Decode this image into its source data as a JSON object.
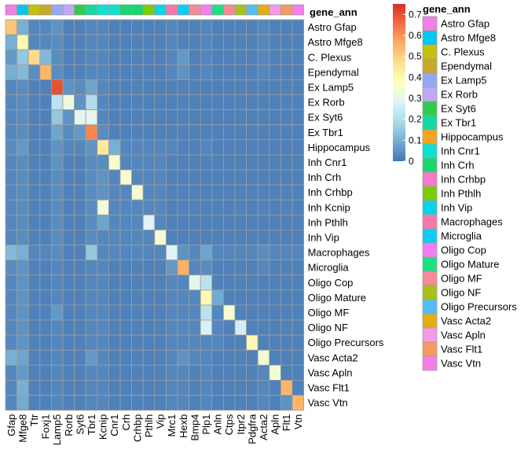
{
  "chart_data": {
    "type": "heatmap",
    "title": "",
    "annotation_title": "gene_ann",
    "legend_title": "gene_ann",
    "columns": [
      "Gfap",
      "Mfge8",
      "Ttr",
      "Foxj1",
      "Lamp5",
      "Rorb",
      "Syt6",
      "Tbr1",
      "Kcnip",
      "Cnr1",
      "Crh",
      "Crhbp",
      "Pthlh",
      "Vip",
      "Mrc1",
      "Hexb",
      "Bmp4",
      "Plp1",
      "Anln",
      "Ctps",
      "Itpr2",
      "Pdgfra",
      "Acta2",
      "Apln",
      "Flt1",
      "Vtn"
    ],
    "column_annotation": [
      "Astro Gfap",
      "Astro Mfge8",
      "C. Plexus",
      "Ependymal",
      "Ex Lamp5",
      "Ex Rorb",
      "Ex Syt6",
      "Ex Tbr1",
      "Inh Cnr1",
      "Inh Cnr1",
      "Inh Crh",
      "Inh Crh",
      "Inh Pthlh",
      "Inh Vip",
      "Macrophages",
      "Microglia",
      "Oligo MF",
      "Oligo Cop",
      "Oligo Mature",
      "Oligo MF",
      "Oligo NF",
      "Oligo Precursors",
      "Vasc Acta2",
      "Vasc Apln",
      "Vasc Flt1",
      "Vasc Vtn"
    ],
    "rows": [
      "Astro Gfap",
      "Astro Mfge8",
      "C. Plexus",
      "Ependymal",
      "Ex Lamp5",
      "Ex Rorb",
      "Ex Syt6",
      "Ex Tbr1",
      "Hippocampus",
      "Inh Cnr1",
      "Inh Crh",
      "Inh Crhbp",
      "Inh Kcnip",
      "Inh Pthlh",
      "Inh Vip",
      "Macrophages",
      "Microglia",
      "Oligo Cop",
      "Oligo Mature",
      "Oligo MF",
      "Oligo NF",
      "Oligo Precursors",
      "Vasc Acta2",
      "Vasc Apln",
      "Vasc Flt1",
      "Vasc Vtn"
    ],
    "values": [
      [
        0.52,
        0.1,
        0.03,
        0.03,
        0.05,
        0.02,
        0.02,
        0.03,
        0.03,
        0.02,
        0.02,
        0.02,
        0.02,
        0.02,
        0.03,
        0.02,
        0.02,
        0.03,
        0.02,
        0.02,
        0.02,
        0.02,
        0.03,
        0.02,
        0.02,
        0.02
      ],
      [
        0.1,
        0.4,
        0.03,
        0.03,
        0.04,
        0.02,
        0.02,
        0.03,
        0.03,
        0.02,
        0.02,
        0.02,
        0.02,
        0.02,
        0.03,
        0.02,
        0.02,
        0.03,
        0.02,
        0.02,
        0.02,
        0.02,
        0.03,
        0.02,
        0.02,
        0.02
      ],
      [
        0.06,
        0.15,
        0.48,
        0.12,
        0.04,
        0.02,
        0.02,
        0.03,
        0.03,
        0.02,
        0.02,
        0.02,
        0.02,
        0.02,
        0.03,
        0.06,
        0.02,
        0.03,
        0.02,
        0.02,
        0.02,
        0.02,
        0.03,
        0.02,
        0.02,
        0.02
      ],
      [
        0.1,
        0.12,
        0.04,
        0.55,
        0.04,
        0.02,
        0.02,
        0.03,
        0.03,
        0.02,
        0.02,
        0.02,
        0.02,
        0.02,
        0.03,
        0.05,
        0.02,
        0.03,
        0.02,
        0.02,
        0.02,
        0.02,
        0.03,
        0.02,
        0.02,
        0.02
      ],
      [
        0.03,
        0.04,
        0.02,
        0.02,
        0.7,
        0.05,
        0.04,
        0.08,
        0.03,
        0.02,
        0.02,
        0.02,
        0.02,
        0.02,
        0.02,
        0.02,
        0.02,
        0.02,
        0.02,
        0.02,
        0.02,
        0.02,
        0.02,
        0.02,
        0.02,
        0.02
      ],
      [
        0.03,
        0.04,
        0.02,
        0.02,
        0.22,
        0.32,
        0.05,
        0.2,
        0.03,
        0.02,
        0.02,
        0.02,
        0.02,
        0.02,
        0.02,
        0.02,
        0.02,
        0.02,
        0.02,
        0.02,
        0.02,
        0.02,
        0.02,
        0.02,
        0.02,
        0.02
      ],
      [
        0.03,
        0.04,
        0.02,
        0.02,
        0.15,
        0.05,
        0.3,
        0.3,
        0.03,
        0.02,
        0.02,
        0.02,
        0.02,
        0.02,
        0.02,
        0.02,
        0.02,
        0.02,
        0.02,
        0.02,
        0.02,
        0.02,
        0.02,
        0.02,
        0.02,
        0.02
      ],
      [
        0.03,
        0.04,
        0.02,
        0.02,
        0.08,
        0.04,
        0.06,
        0.62,
        0.04,
        0.02,
        0.02,
        0.02,
        0.02,
        0.02,
        0.02,
        0.02,
        0.02,
        0.02,
        0.02,
        0.02,
        0.02,
        0.02,
        0.02,
        0.02,
        0.02,
        0.02
      ],
      [
        0.04,
        0.06,
        0.02,
        0.02,
        0.05,
        0.03,
        0.03,
        0.05,
        0.44,
        0.1,
        0.03,
        0.03,
        0.03,
        0.03,
        0.03,
        0.02,
        0.02,
        0.03,
        0.02,
        0.02,
        0.02,
        0.02,
        0.02,
        0.02,
        0.02,
        0.02
      ],
      [
        0.03,
        0.04,
        0.02,
        0.02,
        0.05,
        0.02,
        0.02,
        0.04,
        0.04,
        0.35,
        0.03,
        0.03,
        0.03,
        0.03,
        0.02,
        0.02,
        0.02,
        0.02,
        0.02,
        0.02,
        0.02,
        0.02,
        0.02,
        0.02,
        0.02,
        0.02
      ],
      [
        0.03,
        0.04,
        0.02,
        0.02,
        0.04,
        0.02,
        0.02,
        0.04,
        0.05,
        0.03,
        0.35,
        0.03,
        0.03,
        0.03,
        0.02,
        0.02,
        0.02,
        0.02,
        0.02,
        0.02,
        0.02,
        0.02,
        0.02,
        0.02,
        0.02,
        0.02
      ],
      [
        0.03,
        0.04,
        0.02,
        0.02,
        0.04,
        0.02,
        0.02,
        0.04,
        0.05,
        0.03,
        0.03,
        0.34,
        0.03,
        0.03,
        0.02,
        0.02,
        0.02,
        0.02,
        0.02,
        0.02,
        0.02,
        0.02,
        0.02,
        0.02,
        0.02,
        0.02
      ],
      [
        0.03,
        0.04,
        0.02,
        0.02,
        0.04,
        0.02,
        0.02,
        0.04,
        0.33,
        0.03,
        0.03,
        0.03,
        0.03,
        0.03,
        0.02,
        0.02,
        0.02,
        0.02,
        0.02,
        0.02,
        0.02,
        0.02,
        0.02,
        0.02,
        0.02,
        0.02
      ],
      [
        0.03,
        0.04,
        0.02,
        0.02,
        0.04,
        0.02,
        0.02,
        0.04,
        0.08,
        0.03,
        0.03,
        0.03,
        0.28,
        0.03,
        0.02,
        0.02,
        0.02,
        0.02,
        0.02,
        0.02,
        0.02,
        0.02,
        0.02,
        0.02,
        0.02,
        0.02
      ],
      [
        0.03,
        0.04,
        0.02,
        0.02,
        0.04,
        0.02,
        0.02,
        0.04,
        0.03,
        0.03,
        0.03,
        0.03,
        0.03,
        0.34,
        0.02,
        0.02,
        0.02,
        0.02,
        0.02,
        0.02,
        0.02,
        0.02,
        0.02,
        0.02,
        0.02,
        0.02
      ],
      [
        0.12,
        0.1,
        0.03,
        0.03,
        0.04,
        0.02,
        0.02,
        0.15,
        0.03,
        0.03,
        0.03,
        0.03,
        0.03,
        0.03,
        0.28,
        0.05,
        0.03,
        0.08,
        0.03,
        0.03,
        0.03,
        0.03,
        0.04,
        0.03,
        0.03,
        0.03
      ],
      [
        0.04,
        0.05,
        0.02,
        0.02,
        0.03,
        0.02,
        0.02,
        0.03,
        0.03,
        0.02,
        0.02,
        0.02,
        0.02,
        0.02,
        0.06,
        0.56,
        0.03,
        0.04,
        0.02,
        0.02,
        0.02,
        0.02,
        0.03,
        0.02,
        0.02,
        0.02
      ],
      [
        0.03,
        0.05,
        0.02,
        0.02,
        0.03,
        0.02,
        0.02,
        0.03,
        0.03,
        0.02,
        0.02,
        0.02,
        0.02,
        0.02,
        0.03,
        0.03,
        0.3,
        0.22,
        0.02,
        0.02,
        0.02,
        0.02,
        0.02,
        0.02,
        0.02,
        0.02
      ],
      [
        0.03,
        0.05,
        0.02,
        0.02,
        0.03,
        0.02,
        0.02,
        0.03,
        0.03,
        0.02,
        0.02,
        0.02,
        0.02,
        0.02,
        0.03,
        0.03,
        0.03,
        0.4,
        0.09,
        0.02,
        0.02,
        0.02,
        0.02,
        0.02,
        0.02,
        0.02
      ],
      [
        0.03,
        0.05,
        0.02,
        0.02,
        0.06,
        0.02,
        0.02,
        0.03,
        0.03,
        0.02,
        0.02,
        0.02,
        0.02,
        0.02,
        0.03,
        0.03,
        0.03,
        0.22,
        0.03,
        0.35,
        0.02,
        0.02,
        0.02,
        0.02,
        0.02,
        0.02
      ],
      [
        0.03,
        0.05,
        0.02,
        0.02,
        0.03,
        0.02,
        0.02,
        0.03,
        0.03,
        0.02,
        0.02,
        0.02,
        0.02,
        0.02,
        0.03,
        0.03,
        0.03,
        0.27,
        0.03,
        0.02,
        0.26,
        0.02,
        0.02,
        0.02,
        0.02,
        0.02
      ],
      [
        0.03,
        0.05,
        0.02,
        0.02,
        0.03,
        0.02,
        0.02,
        0.03,
        0.03,
        0.02,
        0.02,
        0.02,
        0.02,
        0.02,
        0.03,
        0.03,
        0.03,
        0.03,
        0.03,
        0.02,
        0.02,
        0.4,
        0.02,
        0.02,
        0.02,
        0.02
      ],
      [
        0.1,
        0.08,
        0.02,
        0.02,
        0.03,
        0.02,
        0.02,
        0.06,
        0.03,
        0.02,
        0.02,
        0.02,
        0.02,
        0.02,
        0.03,
        0.05,
        0.03,
        0.03,
        0.02,
        0.02,
        0.02,
        0.02,
        0.34,
        0.02,
        0.02,
        0.02
      ],
      [
        0.03,
        0.06,
        0.02,
        0.02,
        0.03,
        0.02,
        0.02,
        0.03,
        0.03,
        0.02,
        0.02,
        0.02,
        0.02,
        0.02,
        0.03,
        0.03,
        0.02,
        0.03,
        0.02,
        0.02,
        0.02,
        0.02,
        0.03,
        0.34,
        0.02,
        0.02
      ],
      [
        0.03,
        0.1,
        0.02,
        0.02,
        0.03,
        0.02,
        0.02,
        0.03,
        0.03,
        0.02,
        0.02,
        0.02,
        0.02,
        0.02,
        0.03,
        0.03,
        0.02,
        0.03,
        0.02,
        0.02,
        0.02,
        0.02,
        0.03,
        0.02,
        0.55,
        0.02
      ],
      [
        0.03,
        0.09,
        0.02,
        0.02,
        0.03,
        0.02,
        0.02,
        0.03,
        0.03,
        0.02,
        0.02,
        0.02,
        0.02,
        0.02,
        0.03,
        0.03,
        0.02,
        0.03,
        0.02,
        0.02,
        0.02,
        0.02,
        0.03,
        0.02,
        0.05,
        0.55
      ]
    ],
    "colorbar": {
      "min": 0,
      "max": 0.75,
      "ticks": [
        "0",
        "0.1",
        "0.2",
        "0.3",
        "0.4",
        "0.5",
        "0.6",
        "0.7"
      ]
    },
    "colormap": [
      "#4575b4",
      "#74add1",
      "#abd9e9",
      "#e0f3f8",
      "#ffffbf",
      "#fee090",
      "#fdae61",
      "#f46d43",
      "#d73027"
    ],
    "legend_entries": [
      {
        "label": "Astro Gfap",
        "color": "#f27fe1"
      },
      {
        "label": "Astro Mfge8",
        "color": "#00c8f0"
      },
      {
        "label": "C. Plexus",
        "color": "#c4c10c"
      },
      {
        "label": "Ependymal",
        "color": "#c9a92c"
      },
      {
        "label": "Ex Lamp5",
        "color": "#93a8f5"
      },
      {
        "label": "Ex Rorb",
        "color": "#bfa9f5"
      },
      {
        "label": "Ex Syt6",
        "color": "#2ecc4a"
      },
      {
        "label": "Ex Tbr1",
        "color": "#13d8a0"
      },
      {
        "label": "Hippocampus",
        "color": "#f5a51e"
      },
      {
        "label": "Inh Cnr1",
        "color": "#10e0d2"
      },
      {
        "label": "Inh Crh",
        "color": "#1ad66c"
      },
      {
        "label": "Inh Crhbp",
        "color": "#f57ac8"
      },
      {
        "label": "Inh Pthlh",
        "color": "#7bcc08"
      },
      {
        "label": "Inh Vip",
        "color": "#04d4ea"
      },
      {
        "label": "Macrophages",
        "color": "#f579a8"
      },
      {
        "label": "Microglia",
        "color": "#0cccf5"
      },
      {
        "label": "Oligo Cop",
        "color": "#f57df2"
      },
      {
        "label": "Oligo Mature",
        "color": "#1ee082"
      },
      {
        "label": "Oligo MF",
        "color": "#f58b96"
      },
      {
        "label": "Oligo NF",
        "color": "#a6c21a"
      },
      {
        "label": "Oligo Precursors",
        "color": "#52bff5"
      },
      {
        "label": "Vasc Acta2",
        "color": "#e5ad14"
      },
      {
        "label": "Vasc Apln",
        "color": "#f59ae6"
      },
      {
        "label": "Vasc Flt1",
        "color": "#f59a62"
      },
      {
        "label": "Vasc Vtn",
        "color": "#f57ee9"
      }
    ]
  }
}
